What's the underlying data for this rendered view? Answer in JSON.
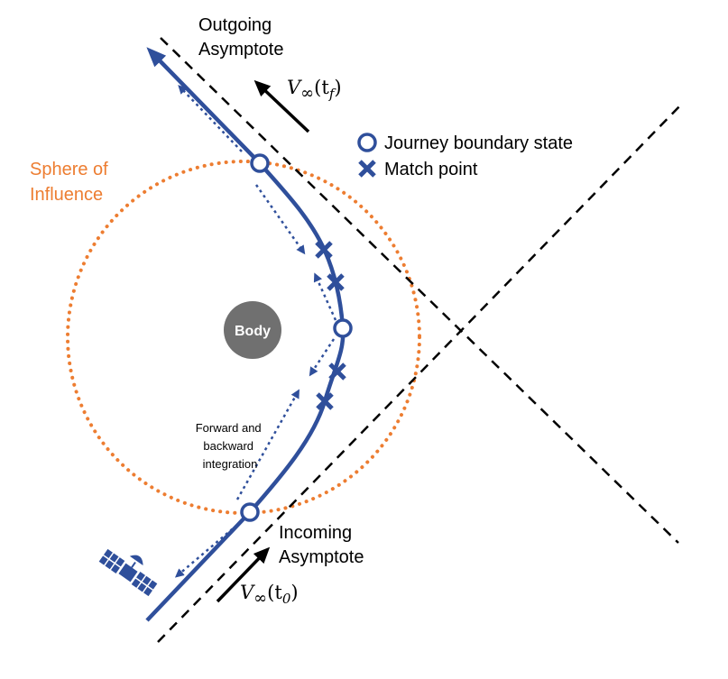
{
  "labels": {
    "outgoing_line1": "Outgoing",
    "outgoing_line2": "Asymptote",
    "incoming_line1": "Incoming",
    "incoming_line2": "Asymptote",
    "soi_line1": "Sphere of",
    "soi_line2": "Influence",
    "body": "Body",
    "integration_line1": "Forward and",
    "integration_line2": "backward",
    "integration_line3": "integration",
    "v_out_main": "V",
    "v_out_sub": "∞",
    "v_out_arg": "(t",
    "v_out_argsub": "f",
    "v_out_close": ")",
    "v_in_main": "V",
    "v_in_sub": "∞",
    "v_in_arg": "(t",
    "v_in_argsub": "0",
    "v_in_close": ")"
  },
  "legend": {
    "boundary_label": "Journey boundary state",
    "match_label": "Match point"
  },
  "colors": {
    "trajectory": "#2f4f9b",
    "soi": "#ed7d31",
    "body": "#707070",
    "asymptote": "#000000"
  },
  "icons": {
    "spacecraft": "satellite-icon",
    "boundary": "open-circle-icon",
    "match": "x-mark-icon"
  }
}
